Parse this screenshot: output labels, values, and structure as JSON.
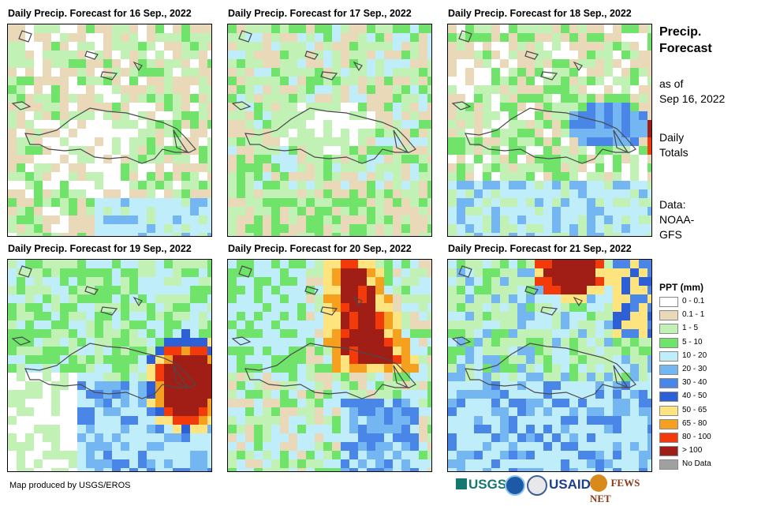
{
  "panels": [
    {
      "title": "Daily Precip. Forecast for 16 Sep., 2022"
    },
    {
      "title": "Daily Precip. Forecast for 17 Sep., 2022"
    },
    {
      "title": "Daily Precip. Forecast for 18 Sep., 2022"
    },
    {
      "title": "Daily Precip. Forecast for 19 Sep., 2022"
    },
    {
      "title": "Daily Precip. Forecast for 20 Sep., 2022"
    },
    {
      "title": "Daily Precip. Forecast for 21 Sep., 2022"
    }
  ],
  "side": {
    "title_line1": "Precip.",
    "title_line2": "Forecast",
    "asof_line1": "as of",
    "asof_line2": "Sep 16, 2022",
    "totals_line1": "Daily",
    "totals_line2": "Totals",
    "source_line1": "Data:",
    "source_line2": "NOAA-",
    "source_line3": "GFS"
  },
  "legend": {
    "title": "PPT (mm)",
    "classes": [
      {
        "label": "0 - 0.1",
        "color": "#ffffff"
      },
      {
        "label": "0.1 - 1",
        "color": "#ead9b9"
      },
      {
        "label": "1 - 5",
        "color": "#c2f1b6"
      },
      {
        "label": "5 - 10",
        "color": "#6fe36a"
      },
      {
        "label": "10 - 20",
        "color": "#bfeefa"
      },
      {
        "label": "20 - 30",
        "color": "#74b6f2"
      },
      {
        "label": "30 - 40",
        "color": "#4a86e8"
      },
      {
        "label": "40 - 50",
        "color": "#2d5fd6"
      },
      {
        "label": "50 - 65",
        "color": "#fde47e"
      },
      {
        "label": "65 - 80",
        "color": "#f5a11f"
      },
      {
        "label": "80 - 100",
        "color": "#f23a0b"
      },
      {
        "label": "> 100",
        "color": "#a11e17"
      },
      {
        "label": "No Data",
        "color": "#a0a0a0"
      }
    ]
  },
  "footer": {
    "credit": "Map produced by USGS/EROS",
    "logos": [
      "USGS",
      "NOAA",
      "USAID",
      "FEWS NET"
    ]
  }
}
